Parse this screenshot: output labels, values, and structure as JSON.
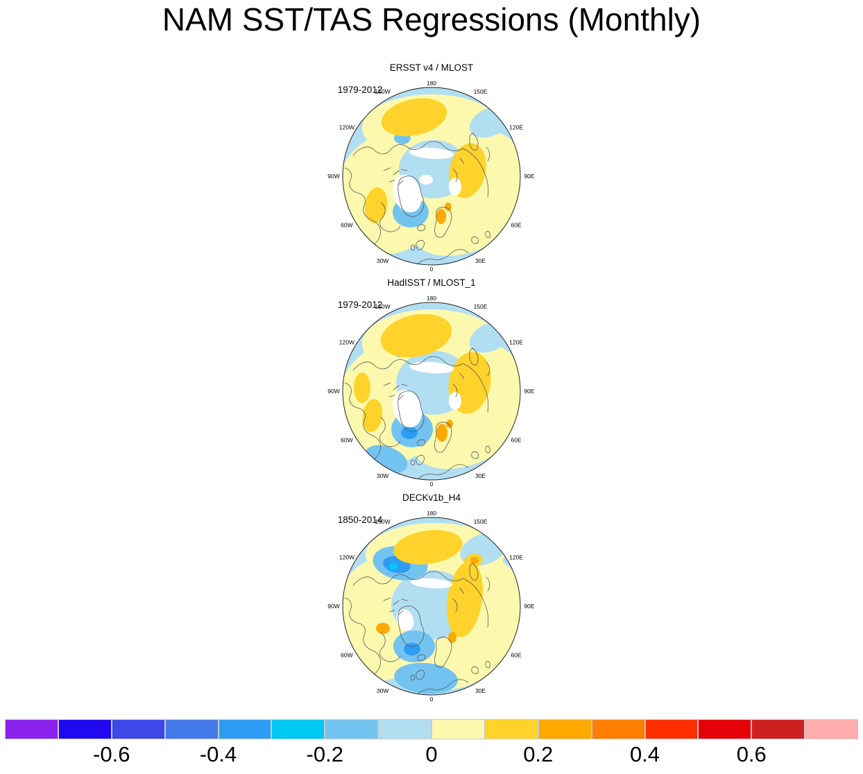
{
  "figure_title": "NAM SST/TAS Regressions (Monthly)",
  "chart_data": {
    "type": "heatmap",
    "subtype": "north-polar-stereographic filled-contour regression maps",
    "title": "NAM SST/TAS Regressions (Monthly)",
    "panels": [
      {
        "title": "ERSST v4 / MLOST",
        "period": "1979-2012",
        "longitude_labels": [
          "180",
          "150E",
          "120E",
          "90E",
          "60E",
          "30E",
          "0",
          "30W",
          "60W",
          "90W",
          "120W",
          "150W"
        ]
      },
      {
        "title": "HadISST / MLOST_1",
        "period": "1979-2012",
        "longitude_labels": [
          "180",
          "150E",
          "120E",
          "90E",
          "60E",
          "30E",
          "0",
          "30W",
          "60W",
          "90W",
          "120W",
          "150W"
        ]
      },
      {
        "title": "DECKv1b_H4",
        "period": "1850-2014",
        "longitude_labels": [
          "180",
          "150E",
          "120E",
          "90E",
          "60E",
          "30E",
          "0",
          "30W",
          "60W",
          "90W",
          "120W",
          "150W"
        ]
      }
    ],
    "colorbar": {
      "orientation": "horizontal",
      "range": [
        -0.8,
        0.8
      ],
      "step": 0.1,
      "tick_labels": [
        "-0.6",
        "-0.4",
        "-0.2",
        "0",
        "0.2",
        "0.4",
        "0.6"
      ],
      "tick_values": [
        -0.6,
        -0.4,
        -0.2,
        0,
        0.2,
        0.4,
        0.6
      ],
      "colors": [
        "#8B22EE",
        "#2008F0",
        "#3C48E8",
        "#4479EA",
        "#2E9CF4",
        "#00C8F4",
        "#73C3F0",
        "#B2DEF2",
        "#FCF9AF",
        "#FFD32B",
        "#FFA800",
        "#FF7D00",
        "#FF2F00",
        "#E60008",
        "#CF2020",
        "#FFACAC"
      ]
    },
    "map_fill_legend": {
      "negative_light": "#B2DEF2",
      "negative_medium": "#73C3F0",
      "negative_strong": "#2E9CF4",
      "positive_light": "#FCF9AF",
      "positive_medium": "#FFD32B",
      "positive_strong": "#FFA800",
      "land_gap": "#FFFFFF",
      "coastline": "#555555"
    }
  }
}
